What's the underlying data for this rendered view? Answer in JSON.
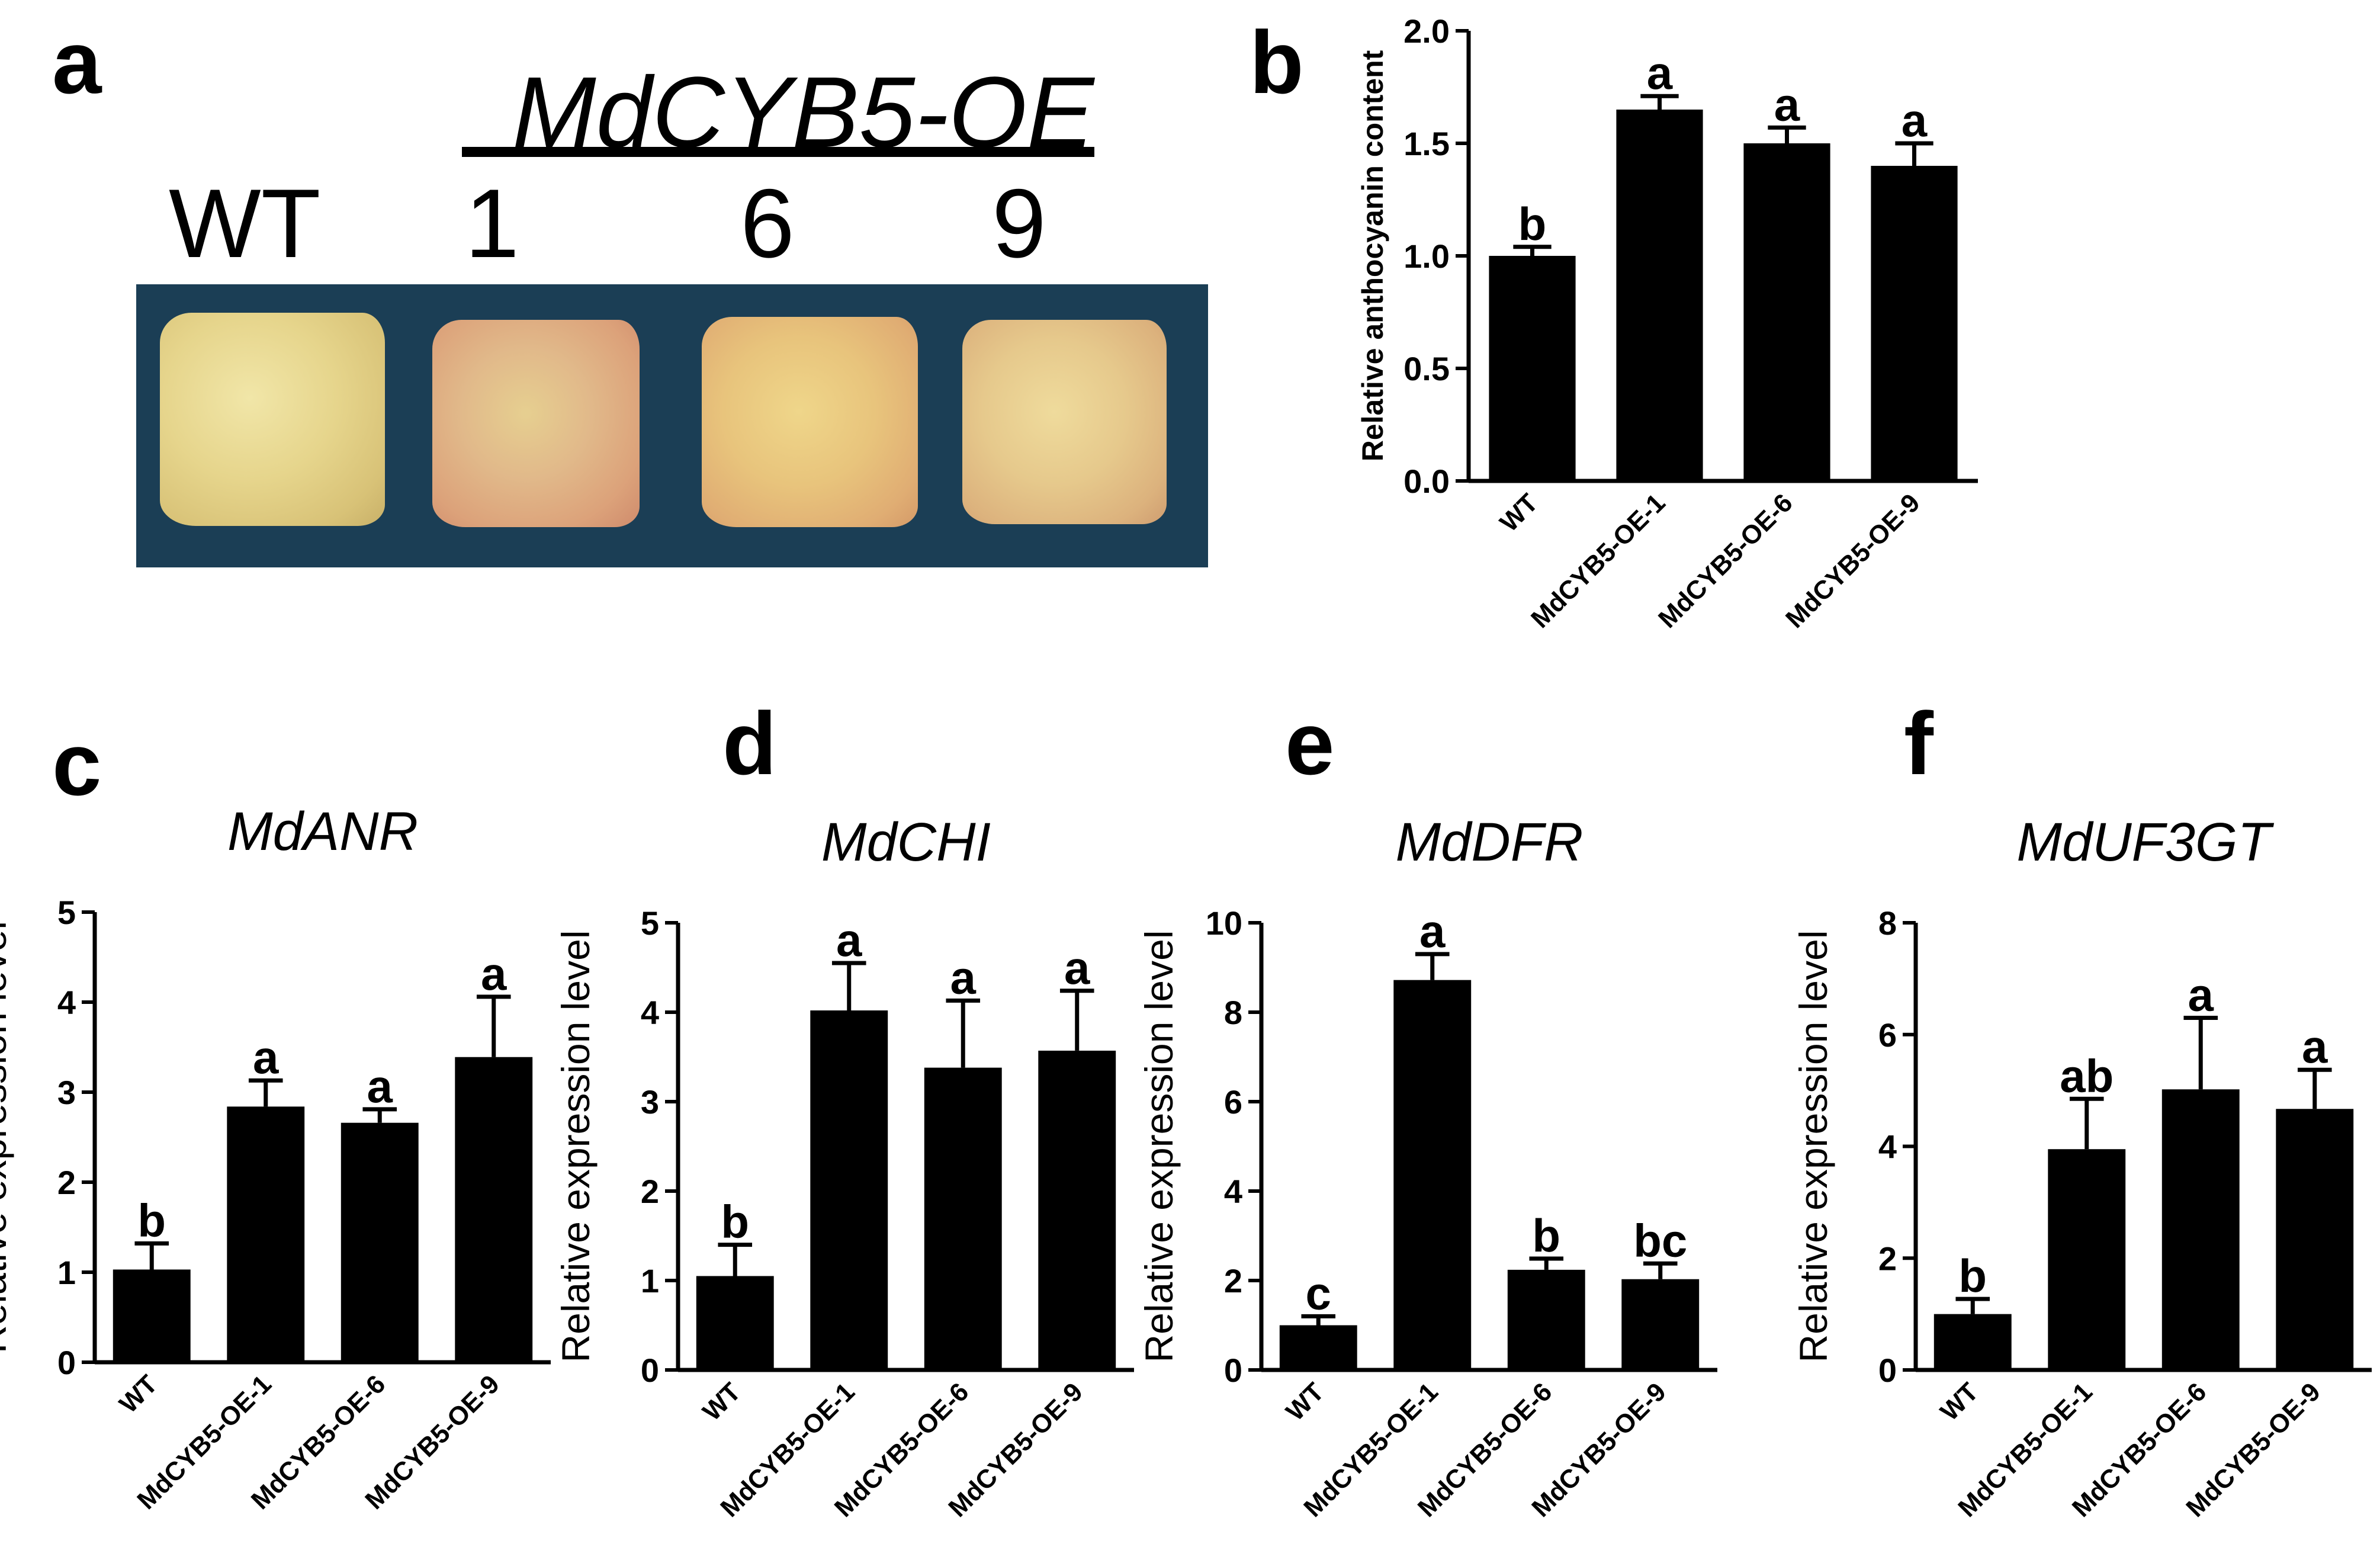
{
  "panels": {
    "a": {
      "letter": "a",
      "oe_title": "MdCYB5-OE",
      "labels": [
        "WT",
        "1",
        "6",
        "9"
      ]
    },
    "b": {
      "letter": "b"
    },
    "c": {
      "letter": "c"
    },
    "d": {
      "letter": "d"
    },
    "e": {
      "letter": "e"
    },
    "f": {
      "letter": "f"
    }
  },
  "colors": {
    "bar": "#000000",
    "photo_background": "#1b3e55",
    "tissue": "#e8d89a"
  },
  "chart_data": [
    {
      "id": "b",
      "type": "bar",
      "title": "",
      "ylabel": "Relative anthocyanin content",
      "categories": [
        "WT",
        "MdCYB5-OE-1",
        "MdCYB5-OE-6",
        "MdCYB5-OE-9"
      ],
      "values": [
        1.0,
        1.65,
        1.5,
        1.4
      ],
      "errors": [
        0.04,
        0.06,
        0.07,
        0.1
      ],
      "significance": [
        "b",
        "a",
        "a",
        "a"
      ],
      "ylim": [
        0,
        2.0
      ],
      "yticks": [
        "0.0",
        "0.5",
        "1.0",
        "1.5",
        "2.0"
      ]
    },
    {
      "id": "c",
      "type": "bar",
      "title": "MdANR",
      "ylabel": "Relative expression level",
      "categories": [
        "WT",
        "MdCYB5-OE-1",
        "MdCYB5-OE-6",
        "MdCYB5-OE-9"
      ],
      "values": [
        1.03,
        2.84,
        2.66,
        3.39
      ],
      "errors": [
        0.29,
        0.29,
        0.15,
        0.67
      ],
      "significance": [
        "b",
        "a",
        "a",
        "a"
      ],
      "ylim": [
        0,
        5
      ],
      "yticks": [
        "0",
        "1",
        "2",
        "3",
        "4",
        "5"
      ]
    },
    {
      "id": "d",
      "type": "bar",
      "title": "MdCHI",
      "ylabel": "Relative expression level",
      "categories": [
        "WT",
        "MdCYB5-OE-1",
        "MdCYB5-OE-6",
        "MdCYB5-OE-9"
      ],
      "values": [
        1.05,
        4.02,
        3.38,
        3.57
      ],
      "errors": [
        0.35,
        0.53,
        0.75,
        0.67
      ],
      "significance": [
        "b",
        "a",
        "a",
        "a"
      ],
      "ylim": [
        0,
        5
      ],
      "yticks": [
        "0",
        "1",
        "2",
        "3",
        "4",
        "5"
      ]
    },
    {
      "id": "e",
      "type": "bar",
      "title": "MdDFR",
      "ylabel": "Relative expression level",
      "categories": [
        "WT",
        "MdCYB5-OE-1",
        "MdCYB5-OE-6",
        "MdCYB5-OE-9"
      ],
      "values": [
        1.0,
        8.72,
        2.24,
        2.03
      ],
      "errors": [
        0.2,
        0.58,
        0.25,
        0.35
      ],
      "significance": [
        "c",
        "a",
        "b",
        "bc"
      ],
      "ylim": [
        0,
        10
      ],
      "yticks": [
        "0",
        "2",
        "4",
        "6",
        "8",
        "10"
      ]
    },
    {
      "id": "f",
      "type": "bar",
      "title": "MdUF3GT",
      "ylabel": "Relative expression level",
      "categories": [
        "WT",
        "MdCYB5-OE-1",
        "MdCYB5-OE-6",
        "MdCYB5-OE-9"
      ],
      "values": [
        1.0,
        3.95,
        5.02,
        4.67
      ],
      "errors": [
        0.27,
        0.9,
        1.28,
        0.7
      ],
      "significance": [
        "b",
        "ab",
        "a",
        "a"
      ],
      "ylim": [
        0,
        8
      ],
      "yticks": [
        "0",
        "2",
        "4",
        "6",
        "8"
      ]
    }
  ]
}
